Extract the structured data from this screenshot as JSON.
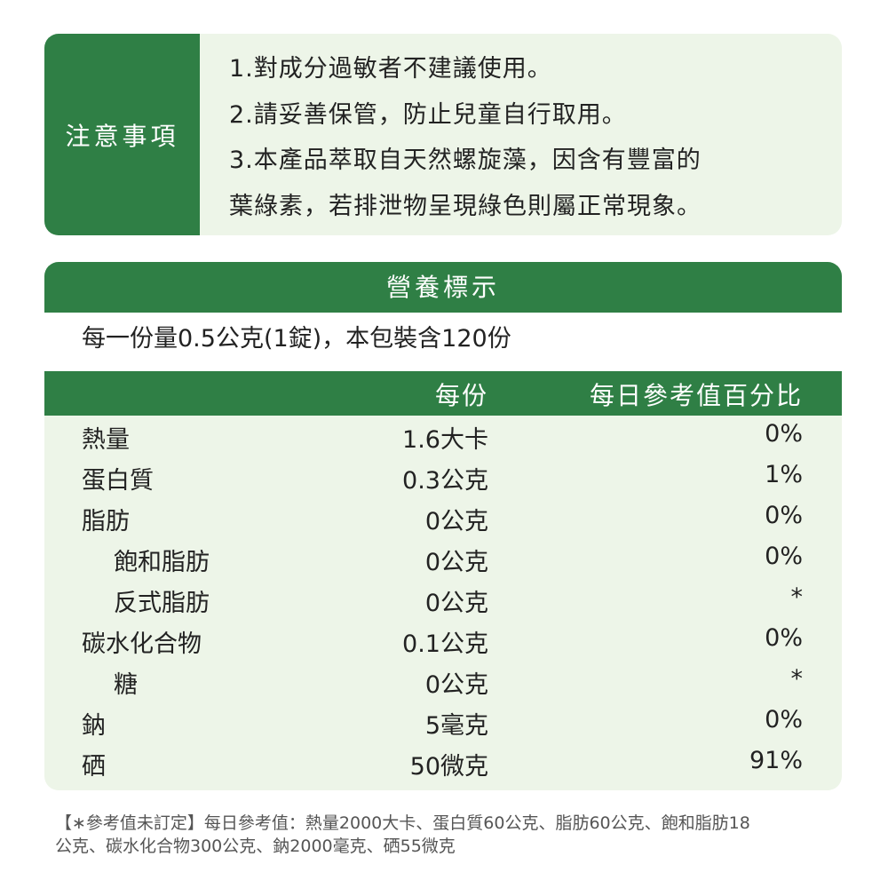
{
  "caution": {
    "label": "注意事項",
    "lines": [
      "1.對成分過敏者不建議使用。",
      "2.請妥善保管，防止兒童自行取用。",
      "3.本產品萃取自天然螺旋藻，因含有豐富的",
      "葉綠素，若排泄物呈現綠色則屬正常現象。"
    ]
  },
  "nutrition": {
    "title": "營養標示",
    "serving": "每一份量0.5公克(1錠)，本包裝含120份",
    "col_per": "每份",
    "col_dv": "每日參考值百分比",
    "rows": [
      {
        "name": "熱量",
        "per": "1.6大卡",
        "dv": "0%"
      },
      {
        "name": "蛋白質",
        "per": "0.3公克",
        "dv": "1%"
      },
      {
        "name": "脂肪",
        "per": "0公克",
        "dv": "0%"
      },
      {
        "name": "飽和脂肪",
        "per": "0公克",
        "dv": "0%",
        "indent": true
      },
      {
        "name": "反式脂肪",
        "per": "0公克",
        "dv": "*",
        "indent": true
      },
      {
        "name": "碳水化合物",
        "per": "0.1公克",
        "dv": "0%"
      },
      {
        "name": "糖",
        "per": "0公克",
        "dv": "*",
        "indent": true
      },
      {
        "name": "鈉",
        "per": "5毫克",
        "dv": "0%"
      },
      {
        "name": "硒",
        "per": "50微克",
        "dv": "91%"
      }
    ]
  },
  "footnote": [
    "【∗參考值未訂定】每日參考值：熱量2000大卡、蛋白質60公克、脂肪60公克、飽和脂肪18",
    "公克、碳水化合物300公克、鈉2000毫克、硒55微克"
  ],
  "colors": {
    "green": "#2f7f45",
    "panel": "#edf5e8"
  }
}
